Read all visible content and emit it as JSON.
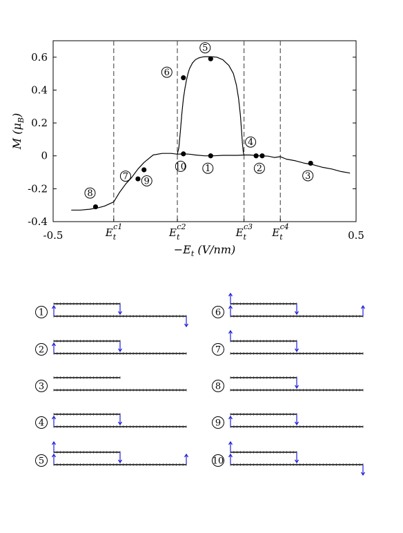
{
  "chart_data": {
    "type": "line",
    "xlabel": "−E_t (V/nm)",
    "ylabel": "M (μ_B)",
    "xlim": [
      -0.5,
      0.5
    ],
    "ylim": [
      -0.4,
      0.7
    ],
    "x_ticks": [
      {
        "value": -0.5,
        "label": "-0.5"
      },
      {
        "value": 0.5,
        "label": "0.5"
      }
    ],
    "y_ticks": [
      {
        "value": 0.6,
        "label": "0.6"
      },
      {
        "value": 0.4,
        "label": "0.4"
      },
      {
        "value": 0.2,
        "label": "0.2"
      },
      {
        "value": 0,
        "label": "0"
      },
      {
        "value": -0.2,
        "label": "-0.2"
      },
      {
        "value": -0.4,
        "label": "-0.4"
      }
    ],
    "critical_fields": [
      {
        "value": -0.3,
        "label": "E_t^{c1}"
      },
      {
        "value": -0.09,
        "label": "E_t^{c2}"
      },
      {
        "value": 0.13,
        "label": "E_t^{c3}"
      },
      {
        "value": 0.25,
        "label": "E_t^{c4}"
      }
    ],
    "series": [
      {
        "x": [
          -0.44,
          -0.41,
          -0.38,
          -0.35,
          -0.33,
          -0.3,
          -0.28,
          -0.26,
          -0.24,
          -0.22,
          -0.2,
          -0.17,
          -0.14,
          -0.11,
          -0.09,
          -0.07,
          -0.05,
          -0.03,
          0.0,
          0.03,
          0.06,
          0.09,
          0.11,
          0.13,
          0.15,
          0.18,
          0.21,
          0.23,
          0.25,
          0.27,
          0.3,
          0.33,
          0.36,
          0.39,
          0.42,
          0.45,
          0.48
        ],
        "values": [
          -0.33,
          -0.33,
          -0.325,
          -0.315,
          -0.305,
          -0.28,
          -0.22,
          -0.17,
          -0.13,
          -0.08,
          -0.04,
          0.005,
          0.015,
          0.015,
          0.01,
          0.012,
          0.01,
          0.005,
          0.0,
          0.0,
          0.003,
          0.003,
          0.003,
          0.005,
          0.005,
          0.0,
          -0.002,
          -0.01,
          -0.005,
          -0.02,
          -0.03,
          -0.045,
          -0.055,
          -0.07,
          -0.08,
          -0.095,
          -0.105
        ]
      },
      {
        "x": [
          -0.09,
          -0.085,
          -0.08,
          -0.075,
          -0.07,
          -0.065,
          -0.06,
          -0.055,
          -0.05,
          -0.04,
          -0.03,
          -0.02,
          -0.01,
          0.0,
          0.02,
          0.04,
          0.06,
          0.08,
          0.095,
          0.105,
          0.112,
          0.118,
          0.122,
          0.125,
          0.128,
          0.13
        ],
        "values": [
          0.01,
          0.05,
          0.15,
          0.26,
          0.35,
          0.41,
          0.46,
          0.5,
          0.53,
          0.565,
          0.585,
          0.595,
          0.6,
          0.603,
          0.603,
          0.6,
          0.585,
          0.55,
          0.5,
          0.43,
          0.35,
          0.25,
          0.15,
          0.07,
          0.02,
          0.005
        ]
      }
    ],
    "points": [
      {
        "label": "1",
        "x": 0.02,
        "y": 0.0
      },
      {
        "label": "2",
        "x": 0.19,
        "y": 0.0
      },
      {
        "label": "3",
        "x": 0.35,
        "y": -0.045
      },
      {
        "label": "4",
        "x": 0.17,
        "y": 0.0
      },
      {
        "label": "5",
        "x": 0.02,
        "y": 0.59
      },
      {
        "label": "6",
        "x": -0.07,
        "y": 0.475
      },
      {
        "label": "7",
        "x": -0.22,
        "y": -0.14
      },
      {
        "label": "8",
        "x": -0.36,
        "y": -0.31
      },
      {
        "label": "9",
        "x": -0.2,
        "y": -0.085
      },
      {
        "label": "10",
        "x": -0.07,
        "y": 0.012
      }
    ]
  },
  "configurations": [
    {
      "label": "1",
      "top_length": 0.5,
      "up_arrows": [
        0
      ],
      "down_arrows": [
        3,
        5
      ]
    },
    {
      "label": "2",
      "top_length": 0.5,
      "up_arrows": [
        0
      ],
      "down_arrows": [
        3
      ]
    },
    {
      "label": "3",
      "top_length": 0.5,
      "up_arrows": [],
      "down_arrows": []
    },
    {
      "label": "4",
      "top_length": 0.5,
      "up_arrows": [
        0
      ],
      "down_arrows": [
        3
      ]
    },
    {
      "label": "5",
      "top_length": 0.5,
      "up_arrows": [
        0,
        2,
        4
      ],
      "down_arrows": [
        3
      ]
    },
    {
      "label": "6",
      "top_length": 0.5,
      "up_arrows": [
        0,
        2,
        4
      ],
      "down_arrows": [
        3
      ]
    },
    {
      "label": "7",
      "top_length": 0.5,
      "up_arrows": [
        2
      ],
      "down_arrows": [
        3
      ]
    },
    {
      "label": "8",
      "top_length": 0.5,
      "up_arrows": [],
      "down_arrows": [
        3
      ]
    },
    {
      "label": "9",
      "top_length": 0.5,
      "up_arrows": [
        0
      ],
      "down_arrows": [
        3
      ]
    },
    {
      "label": "10",
      "top_length": 0.5,
      "up_arrows": [
        0,
        2
      ],
      "down_arrows": [
        3,
        5
      ]
    }
  ],
  "colors": {
    "curve": "#000000",
    "spin_arrow": "#1f1fd8",
    "guide_line": "#555555"
  }
}
